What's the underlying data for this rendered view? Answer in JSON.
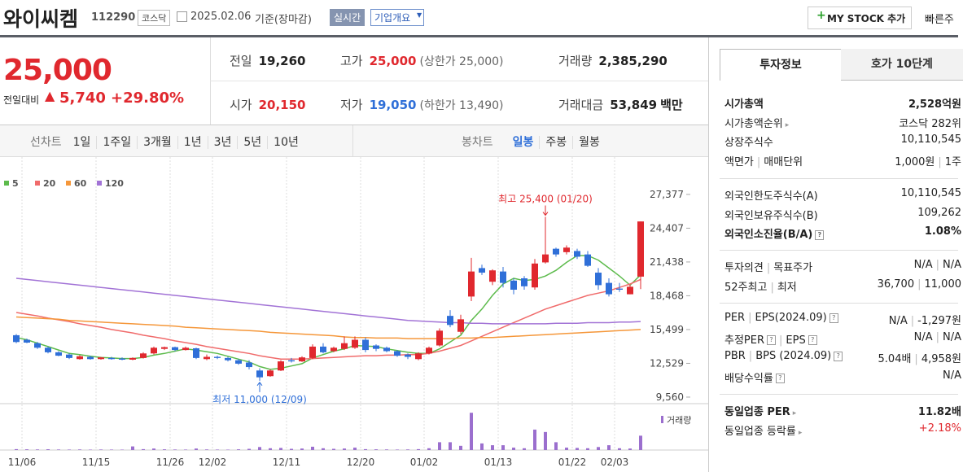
{
  "header": {
    "name": "와이씨켐",
    "code": "112290",
    "market": "코스닥",
    "date": "2025.02.06",
    "basis": "기준(장마감)",
    "realtime": "실시간",
    "company_info": "기업개요",
    "my_stock": "MY STOCK 추가",
    "quick": "빠른주"
  },
  "quote": {
    "price": "25,000",
    "change_label": "전일대비",
    "change": "5,740",
    "change_pct": "+29.80%",
    "fields": [
      {
        "label": "전일",
        "value": "19,260"
      },
      {
        "label": "고가",
        "value": "25,000",
        "note": "(상한가 25,000)"
      },
      {
        "label": "거래량",
        "value": "2,385,290"
      },
      {
        "label": "시가",
        "value": "20,150"
      },
      {
        "label": "저가",
        "value": "19,050",
        "note": "(하한가 13,490)"
      },
      {
        "label": "거래대금",
        "value": "53,849",
        "unit": "백만"
      }
    ]
  },
  "chart_tabs": {
    "line_label": "선차트",
    "line_periods": [
      "1일",
      "1주일",
      "3개월",
      "1년",
      "3년",
      "5년",
      "10년"
    ],
    "candle_label": "봉차트",
    "candle_periods": [
      "일봉",
      "주봉",
      "월봉"
    ]
  },
  "chart_data": {
    "type": "candlestick",
    "categories": [
      "11/06",
      null,
      null,
      null,
      null,
      null,
      null,
      "11/15",
      null,
      null,
      null,
      null,
      null,
      null,
      "11/26",
      null,
      null,
      null,
      "12/02",
      null,
      null,
      null,
      null,
      null,
      null,
      "12/11",
      null,
      null,
      null,
      null,
      null,
      null,
      "12/20",
      null,
      null,
      null,
      null,
      null,
      "01/02",
      null,
      null,
      null,
      null,
      null,
      null,
      "01/13",
      null,
      null,
      null,
      null,
      null,
      null,
      "01/22",
      null,
      null,
      null,
      "02/03",
      null,
      null,
      null
    ],
    "open": [
      15000,
      14600,
      14300,
      13900,
      13500,
      13300,
      12900,
      13100,
      12900,
      13000,
      12950,
      12850,
      13000,
      13400,
      13800,
      13950,
      13700,
      13850,
      12900,
      13100,
      13000,
      12800,
      12600,
      11900,
      11400,
      11900,
      12800,
      12700,
      13000,
      14000,
      13600,
      13800,
      13900,
      14600,
      14100,
      13900,
      13600,
      13300,
      12900,
      13400,
      14100,
      16700,
      15300,
      18400,
      20900,
      19700,
      20600,
      19800,
      20000,
      19200,
      21400,
      22600,
      22300,
      22400,
      22100,
      20500,
      19600,
      19100,
      18600,
      20150
    ],
    "high": [
      15100,
      14700,
      14400,
      14000,
      13600,
      13400,
      13250,
      13200,
      13100,
      13100,
      13050,
      13050,
      13500,
      14000,
      14000,
      14000,
      14000,
      13900,
      13300,
      13200,
      13100,
      12900,
      12800,
      12100,
      12000,
      12800,
      13000,
      13150,
      14200,
      14300,
      14000,
      14900,
      14900,
      14800,
      14200,
      14000,
      13700,
      13400,
      13500,
      14000,
      15600,
      17200,
      16800,
      21800,
      21200,
      20800,
      21000,
      20000,
      20200,
      21700,
      25400,
      22700,
      22900,
      22600,
      22400,
      20900,
      20000,
      19600,
      19400,
      25000
    ],
    "low": [
      14300,
      14300,
      13800,
      13400,
      13150,
      12900,
      12850,
      12850,
      12850,
      12850,
      12800,
      12800,
      12950,
      13300,
      13700,
      13600,
      13650,
      12900,
      12800,
      12900,
      12700,
      12400,
      12000,
      11000,
      11350,
      11850,
      12600,
      12650,
      12900,
      13400,
      13500,
      13700,
      13800,
      13500,
      13600,
      13500,
      13100,
      12900,
      12800,
      13300,
      14000,
      15700,
      15100,
      18000,
      20300,
      19400,
      19200,
      18600,
      19000,
      19000,
      21300,
      21900,
      22100,
      21700,
      21000,
      19000,
      18400,
      18800,
      18600,
      19050
    ],
    "close": [
      14400,
      14350,
      13900,
      13500,
      13200,
      13000,
      13150,
      12900,
      13050,
      12900,
      12850,
      13000,
      13400,
      13900,
      13950,
      13700,
      13900,
      13000,
      13100,
      13000,
      12800,
      12500,
      12200,
      11300,
      11900,
      12700,
      12700,
      13050,
      14000,
      13500,
      13900,
      14300,
      14600,
      13700,
      13800,
      13600,
      13200,
      13100,
      13400,
      13900,
      15400,
      15900,
      16400,
      20600,
      20500,
      20700,
      19600,
      19000,
      19300,
      21300,
      22100,
      22100,
      22700,
      21900,
      21100,
      19400,
      18600,
      19000,
      19260,
      25000
    ],
    "up_color": "#e0282e",
    "down_color": "#2f6fd8",
    "ylim": [
      8700,
      29800
    ],
    "yticks": [
      {
        "value": 9560,
        "label": "9,560"
      },
      {
        "value": 12529,
        "label": "12,529"
      },
      {
        "value": 15499,
        "label": "15,499"
      },
      {
        "value": 18468,
        "label": "18,468"
      },
      {
        "value": 21438,
        "label": "21,438"
      },
      {
        "value": 24407,
        "label": "24,407"
      },
      {
        "value": 27377,
        "label": "27,377"
      }
    ],
    "annotations": [
      {
        "text": "최고 25,400 (01/20)",
        "color": "#e0282e"
      },
      {
        "text": "최저 11,000 (12/09)",
        "color": "#2f6fd8"
      }
    ],
    "ma": [
      {
        "name": "5",
        "color": "#5dbb4c",
        "values": [
          14800,
          14600,
          14300,
          14000,
          13700,
          13400,
          13300,
          13150,
          13050,
          13000,
          12950,
          12950,
          13050,
          13250,
          13400,
          13600,
          13800,
          13700,
          13550,
          13400,
          13150,
          12900,
          12650,
          12250,
          12000,
          12100,
          12300,
          12500,
          13000,
          13300,
          13600,
          13800,
          14100,
          14050,
          14000,
          13800,
          13650,
          13500,
          13400,
          13400,
          13800,
          14400,
          15000,
          16300,
          17300,
          18500,
          19500,
          20000,
          19800,
          19900,
          20200,
          20700,
          21400,
          22000,
          22000,
          21600,
          20900,
          20200,
          19400,
          20300
        ]
      },
      {
        "name": "20",
        "color": "#f06b6b",
        "values": [
          17000,
          16850,
          16700,
          16500,
          16350,
          16200,
          16000,
          15850,
          15700,
          15500,
          15350,
          15200,
          15000,
          14850,
          14700,
          14500,
          14350,
          14200,
          14000,
          13850,
          13700,
          13550,
          13400,
          13200,
          13050,
          12900,
          12900,
          12900,
          12950,
          13000,
          13050,
          13100,
          13150,
          13200,
          13200,
          13250,
          13250,
          13300,
          13300,
          13400,
          13600,
          13850,
          14100,
          14500,
          14900,
          15300,
          15700,
          16100,
          16500,
          16900,
          17300,
          17600,
          17900,
          18200,
          18500,
          18700,
          18900,
          19200,
          19500,
          19900
        ]
      },
      {
        "name": "60",
        "color": "#f5973a",
        "values": [
          16600,
          16550,
          16500,
          16450,
          16400,
          16300,
          16250,
          16200,
          16150,
          16100,
          16050,
          16000,
          15950,
          15900,
          15850,
          15800,
          15700,
          15650,
          15600,
          15550,
          15500,
          15450,
          15400,
          15350,
          15250,
          15200,
          15150,
          15100,
          15050,
          15000,
          14950,
          14850,
          14800,
          14800,
          14750,
          14750,
          14750,
          14700,
          14700,
          14700,
          14700,
          14700,
          14750,
          14750,
          14800,
          14800,
          14850,
          14900,
          14950,
          15000,
          15050,
          15100,
          15150,
          15200,
          15250,
          15300,
          15350,
          15400,
          15450,
          15500
        ]
      },
      {
        "name": "120",
        "color": "#a273d6",
        "values": [
          20000,
          19900,
          19800,
          19700,
          19600,
          19500,
          19400,
          19300,
          19200,
          19100,
          19000,
          18900,
          18800,
          18700,
          18600,
          18500,
          18400,
          18300,
          18200,
          18100,
          18000,
          17900,
          17800,
          17700,
          17600,
          17500,
          17400,
          17300,
          17200,
          17100,
          17000,
          16900,
          16800,
          16700,
          16600,
          16500,
          16400,
          16300,
          16250,
          16200,
          16150,
          16100,
          16100,
          16050,
          16050,
          16000,
          16000,
          16000,
          16000,
          16000,
          16000,
          16050,
          16050,
          16050,
          16100,
          16100,
          16100,
          16150,
          16150,
          16200
        ]
      }
    ],
    "volume": {
      "name": "거래량",
      "color": "#9b6fce",
      "ylim": [
        0,
        6500000
      ],
      "values": [
        150000,
        120000,
        100000,
        130000,
        90000,
        80000,
        100000,
        70000,
        90000,
        80000,
        70000,
        600000,
        150000,
        250000,
        120000,
        90000,
        80000,
        250000,
        100000,
        80000,
        70000,
        120000,
        200000,
        500000,
        300000,
        350000,
        200000,
        250000,
        550000,
        300000,
        200000,
        250000,
        400000,
        150000,
        120000,
        100000,
        80000,
        100000,
        150000,
        300000,
        1300000,
        1300000,
        700000,
        6200000,
        1100000,
        800000,
        800000,
        400000,
        300000,
        3400000,
        3000000,
        1300000,
        400000,
        350000,
        300000,
        500000,
        800000,
        300000,
        250000,
        2385290
      ]
    }
  },
  "invest_info": {
    "tabs": [
      "투자정보",
      "호가 10단계"
    ],
    "groups": [
      [
        {
          "labels": [
            "시가총액"
          ],
          "values": [
            "2,528억원"
          ]
        },
        {
          "labels": [
            "시가총액순위"
          ],
          "values": [
            "코스닥 282위"
          ]
        },
        {
          "labels": [
            "상장주식수"
          ],
          "values": [
            "10,110,545"
          ]
        },
        {
          "labels": [
            "액면가",
            "매매단위"
          ],
          "values": [
            "1,000원",
            "1주"
          ]
        }
      ],
      [
        {
          "labels": [
            "외국인한도주식수(A)"
          ],
          "values": [
            "10,110,545"
          ]
        },
        {
          "labels": [
            "외국인보유주식수(B)"
          ],
          "values": [
            "109,262"
          ]
        },
        {
          "labels": [
            "외국인소진율(B/A)"
          ],
          "values": [
            "1.08%"
          ]
        }
      ],
      [
        {
          "labels": [
            "투자의견",
            "목표주가"
          ],
          "values": [
            "N/A",
            "N/A"
          ]
        },
        {
          "labels": [
            "52주최고",
            "최저"
          ],
          "values": [
            "36,700",
            "11,000"
          ]
        }
      ],
      [
        {
          "labels": [
            "PER",
            "EPS(2024.09)"
          ],
          "values": [
            "N/A",
            "-1,297원"
          ]
        },
        {
          "labels": [
            "추정PER",
            "EPS"
          ],
          "values": [
            "N/A",
            "N/A"
          ]
        },
        {
          "labels": [
            "PBR",
            "BPS (2024.09)"
          ],
          "values": [
            "5.04배",
            "4,958원"
          ]
        },
        {
          "labels": [
            "배당수익률"
          ],
          "values": [
            "N/A"
          ]
        }
      ],
      [
        {
          "labels": [
            "동일업종 PER"
          ],
          "values": [
            "11.82배"
          ]
        },
        {
          "labels": [
            "동일업종 등락률"
          ],
          "values": [
            "+2.18%"
          ]
        }
      ]
    ]
  }
}
